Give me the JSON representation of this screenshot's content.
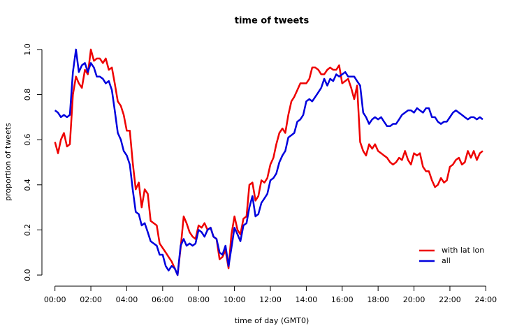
{
  "chart_data": {
    "type": "line",
    "title": "time of tweets",
    "xlabel": "time of day (GMT0)",
    "ylabel": "proportion of tweets",
    "x": [
      0,
      0.17,
      0.33,
      0.5,
      0.67,
      0.83,
      1,
      1.17,
      1.33,
      1.5,
      1.67,
      1.83,
      2,
      2.17,
      2.33,
      2.5,
      2.67,
      2.83,
      3,
      3.17,
      3.33,
      3.5,
      3.67,
      3.83,
      4,
      4.17,
      4.33,
      4.5,
      4.67,
      4.83,
      5,
      5.17,
      5.33,
      5.5,
      5.67,
      5.83,
      6,
      6.17,
      6.33,
      6.5,
      6.67,
      6.83,
      7,
      7.17,
      7.33,
      7.5,
      7.67,
      7.83,
      8,
      8.17,
      8.33,
      8.5,
      8.67,
      8.83,
      9,
      9.17,
      9.33,
      9.5,
      9.67,
      9.83,
      10,
      10.17,
      10.33,
      10.5,
      10.67,
      10.83,
      11,
      11.17,
      11.33,
      11.5,
      11.67,
      11.83,
      12,
      12.17,
      12.33,
      12.5,
      12.67,
      12.83,
      13,
      13.17,
      13.33,
      13.5,
      13.67,
      13.83,
      14,
      14.17,
      14.33,
      14.5,
      14.67,
      14.83,
      15,
      15.17,
      15.33,
      15.5,
      15.67,
      15.83,
      16,
      16.17,
      16.33,
      16.5,
      16.67,
      16.83,
      17,
      17.17,
      17.33,
      17.5,
      17.67,
      17.83,
      18,
      18.17,
      18.33,
      18.5,
      18.67,
      18.83,
      19,
      19.17,
      19.33,
      19.5,
      19.67,
      19.83,
      20,
      20.17,
      20.33,
      20.5,
      20.67,
      20.83,
      21,
      21.17,
      21.33,
      21.5,
      21.67,
      21.83,
      22,
      22.17,
      22.33,
      22.5,
      22.67,
      22.83,
      23,
      23.17,
      23.33,
      23.5,
      23.67,
      23.83
    ],
    "series": [
      {
        "name": "with lat lon",
        "color": "#ee0000",
        "values": [
          0.59,
          0.54,
          0.6,
          0.63,
          0.57,
          0.58,
          0.8,
          0.88,
          0.85,
          0.83,
          0.91,
          0.89,
          1.0,
          0.95,
          0.96,
          0.96,
          0.94,
          0.96,
          0.91,
          0.92,
          0.85,
          0.77,
          0.75,
          0.71,
          0.64,
          0.64,
          0.5,
          0.38,
          0.41,
          0.3,
          0.38,
          0.36,
          0.24,
          0.23,
          0.22,
          0.14,
          0.12,
          0.1,
          0.08,
          0.06,
          0.03,
          0.0,
          0.12,
          0.26,
          0.23,
          0.19,
          0.17,
          0.16,
          0.22,
          0.21,
          0.23,
          0.2,
          0.21,
          0.17,
          0.16,
          0.07,
          0.08,
          0.11,
          0.03,
          0.18,
          0.26,
          0.2,
          0.18,
          0.25,
          0.26,
          0.4,
          0.41,
          0.33,
          0.35,
          0.42,
          0.41,
          0.43,
          0.49,
          0.52,
          0.58,
          0.63,
          0.65,
          0.63,
          0.71,
          0.77,
          0.79,
          0.82,
          0.85,
          0.85,
          0.85,
          0.87,
          0.92,
          0.92,
          0.91,
          0.89,
          0.89,
          0.91,
          0.92,
          0.91,
          0.91,
          0.93,
          0.85,
          0.86,
          0.87,
          0.83,
          0.78,
          0.84,
          0.59,
          0.55,
          0.53,
          0.58,
          0.56,
          0.58,
          0.55,
          0.54,
          0.53,
          0.52,
          0.5,
          0.49,
          0.5,
          0.52,
          0.51,
          0.55,
          0.51,
          0.49,
          0.54,
          0.53,
          0.54,
          0.48,
          0.46,
          0.46,
          0.42,
          0.39,
          0.4,
          0.43,
          0.41,
          0.42,
          0.48,
          0.49,
          0.51,
          0.52,
          0.49,
          0.5,
          0.55,
          0.52,
          0.55,
          0.51,
          0.54,
          0.55
        ]
      },
      {
        "name": "all",
        "color": "#0000dd",
        "values": [
          0.73,
          0.72,
          0.7,
          0.71,
          0.7,
          0.71,
          0.9,
          1.0,
          0.9,
          0.93,
          0.94,
          0.9,
          0.94,
          0.92,
          0.88,
          0.88,
          0.87,
          0.85,
          0.86,
          0.82,
          0.73,
          0.63,
          0.6,
          0.55,
          0.53,
          0.49,
          0.38,
          0.28,
          0.27,
          0.22,
          0.23,
          0.19,
          0.15,
          0.14,
          0.13,
          0.09,
          0.09,
          0.04,
          0.02,
          0.04,
          0.03,
          0.0,
          0.13,
          0.16,
          0.13,
          0.14,
          0.13,
          0.14,
          0.2,
          0.19,
          0.17,
          0.2,
          0.21,
          0.17,
          0.16,
          0.1,
          0.09,
          0.13,
          0.04,
          0.12,
          0.21,
          0.18,
          0.15,
          0.22,
          0.23,
          0.3,
          0.35,
          0.26,
          0.27,
          0.32,
          0.34,
          0.36,
          0.42,
          0.43,
          0.45,
          0.5,
          0.53,
          0.55,
          0.61,
          0.62,
          0.63,
          0.68,
          0.69,
          0.71,
          0.77,
          0.78,
          0.77,
          0.79,
          0.81,
          0.83,
          0.87,
          0.84,
          0.87,
          0.86,
          0.89,
          0.88,
          0.89,
          0.9,
          0.88,
          0.88,
          0.88,
          0.86,
          0.84,
          0.72,
          0.7,
          0.67,
          0.69,
          0.7,
          0.69,
          0.7,
          0.68,
          0.66,
          0.66,
          0.67,
          0.67,
          0.69,
          0.71,
          0.72,
          0.73,
          0.73,
          0.72,
          0.74,
          0.73,
          0.72,
          0.74,
          0.74,
          0.7,
          0.7,
          0.68,
          0.67,
          0.68,
          0.68,
          0.7,
          0.72,
          0.73,
          0.72,
          0.71,
          0.7,
          0.69,
          0.7,
          0.7,
          0.69,
          0.7,
          0.69
        ]
      }
    ],
    "xlim": [
      -0.96,
      24.96
    ],
    "ylim": [
      -0.04,
      1.04
    ],
    "xticks": [
      {
        "value": 0,
        "label": "00:00"
      },
      {
        "value": 2,
        "label": "02:00"
      },
      {
        "value": 4,
        "label": "04:00"
      },
      {
        "value": 6,
        "label": "06:00"
      },
      {
        "value": 8,
        "label": "08:00"
      },
      {
        "value": 10,
        "label": "10:00"
      },
      {
        "value": 12,
        "label": "12:00"
      },
      {
        "value": 14,
        "label": "14:00"
      },
      {
        "value": 16,
        "label": "16:00"
      },
      {
        "value": 18,
        "label": "18:00"
      },
      {
        "value": 20,
        "label": "20:00"
      },
      {
        "value": 22,
        "label": "22:00"
      },
      {
        "value": 24,
        "label": "24:00"
      }
    ],
    "yticks": [
      {
        "value": 0,
        "label": "0.0"
      },
      {
        "value": 0.2,
        "label": "0.2"
      },
      {
        "value": 0.4,
        "label": "0.4"
      },
      {
        "value": 0.6,
        "label": "0.6"
      },
      {
        "value": 0.8,
        "label": "0.8"
      },
      {
        "value": 1,
        "label": "1.0"
      }
    ],
    "legend": "bottomright"
  }
}
